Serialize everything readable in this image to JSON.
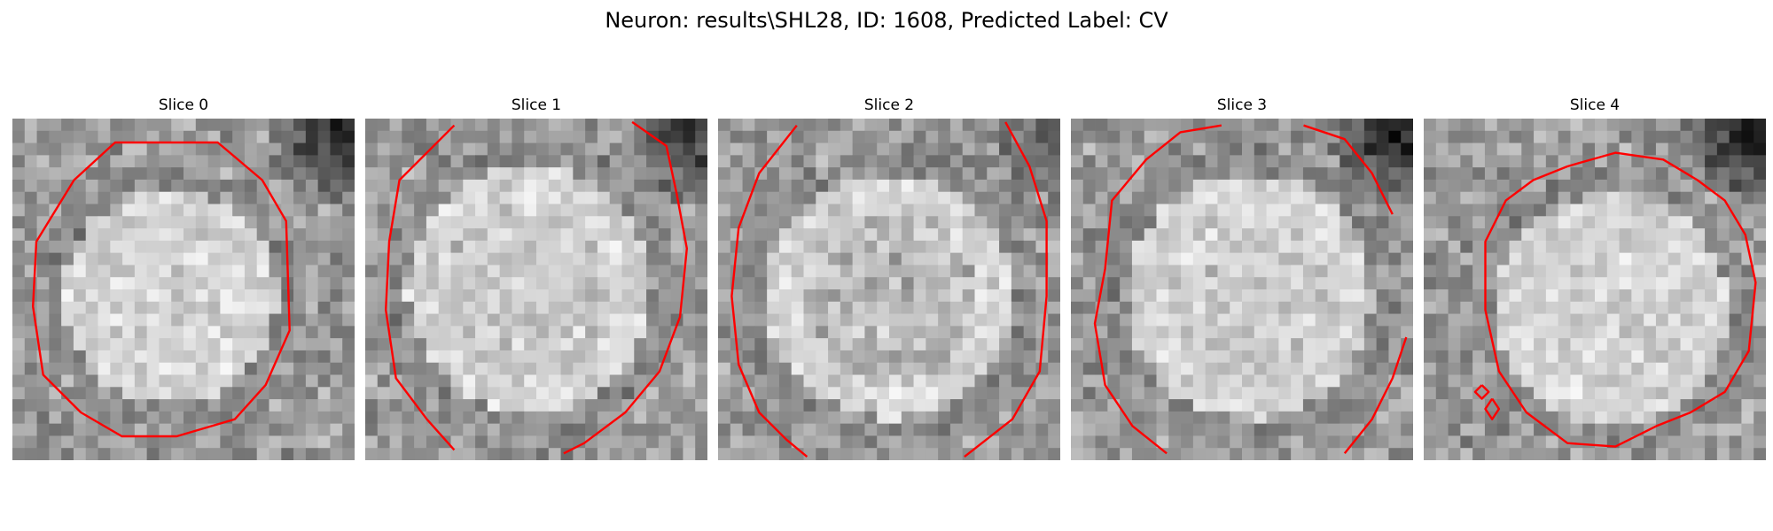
{
  "figure": {
    "title": "Neuron: results\\SHL28, ID: 1608, Predicted Label: CV"
  },
  "slices": [
    {
      "title": "Slice 0"
    },
    {
      "title": "Slice 1"
    },
    {
      "title": "Slice 2"
    },
    {
      "title": "Slice 3"
    },
    {
      "title": "Slice 4"
    }
  ],
  "style": {
    "contour_color": "#ff0000"
  }
}
